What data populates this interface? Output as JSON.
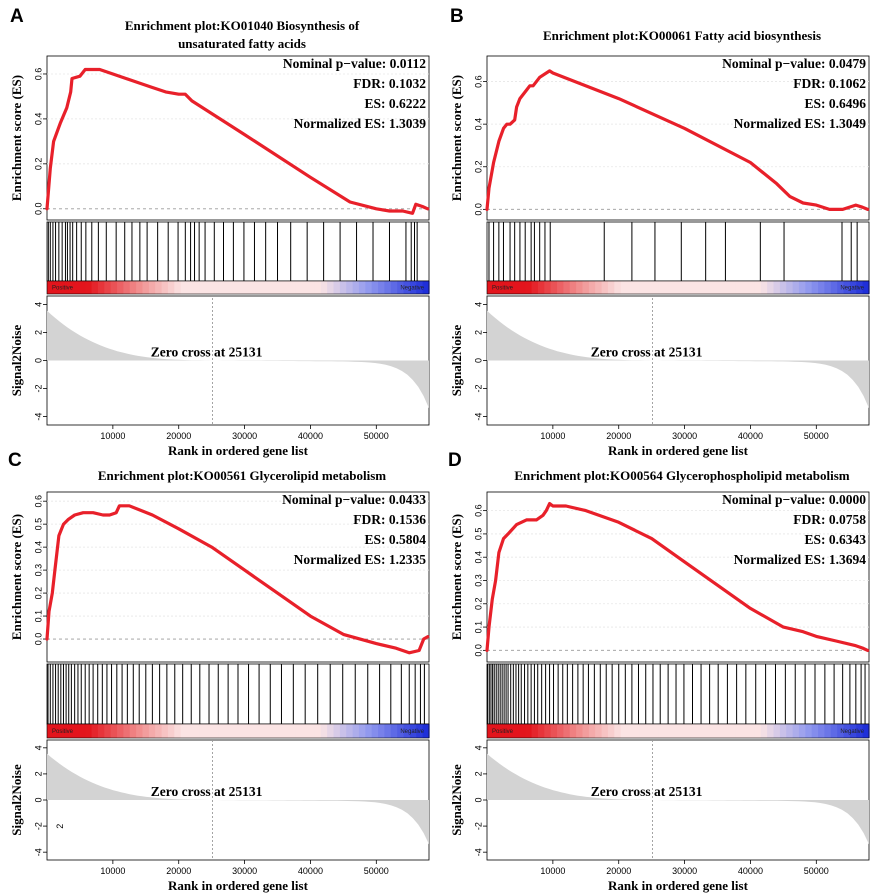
{
  "chart_data": [
    {
      "type": "line",
      "panel_letter": "A",
      "title": [
        "Enrichment plot:KO01040 Biosynthesis of",
        "unsaturated fatty acids"
      ],
      "stats": [
        "Nominal p−value: 0.0112",
        "FDR: 0.1032",
        "ES: 0.6222",
        "Normalized ES: 1.3039"
      ],
      "ylabel": "Enrichment score (ES)",
      "ylim": [
        -0.05,
        0.68
      ],
      "yticks": [
        "0.0",
        "0.2",
        "0.4",
        "0.6"
      ],
      "es_x": [
        0,
        500,
        1000,
        2000,
        3000,
        3600,
        3800,
        5000,
        5800,
        7000,
        8000,
        10000,
        12000,
        14000,
        16000,
        18000,
        20000,
        21000,
        22000,
        30000,
        40000,
        46000,
        50000,
        52000,
        54000,
        55500,
        56000,
        57000,
        57800
      ],
      "es_y": [
        0.0,
        0.18,
        0.3,
        0.38,
        0.45,
        0.52,
        0.58,
        0.59,
        0.62,
        0.62,
        0.62,
        0.6,
        0.58,
        0.56,
        0.54,
        0.52,
        0.51,
        0.51,
        0.48,
        0.33,
        0.14,
        0.03,
        0.0,
        -0.01,
        -0.01,
        -0.02,
        0.02,
        0.01,
        0.0
      ],
      "hits": [
        200,
        500,
        900,
        1300,
        1800,
        2300,
        2800,
        3100,
        3500,
        3900,
        4500,
        5200,
        5900,
        6800,
        7800,
        9000,
        10500,
        11800,
        12900,
        14100,
        15200,
        16800,
        18400,
        19900,
        21000,
        21800,
        22400,
        23100,
        24000,
        25400,
        26800,
        28300,
        29900,
        31500,
        33200,
        35000,
        37000,
        39500,
        42000,
        44500,
        47000,
        49500,
        52000,
        54500,
        55300,
        55800,
        56200
      ],
      "s2n_label": "Signal2Noise",
      "s2n_yticks": [
        "4",
        "2",
        "0",
        "-2",
        "-4"
      ],
      "zero_cross_label": "Zero cross at 25131",
      "zero_cross": 25131,
      "heatmap_pos_label": "Positive",
      "heatmap_neg_label": "Negative",
      "xlabel": "Rank in ordered gene list",
      "xticks": [
        10000,
        20000,
        30000,
        40000,
        50000
      ],
      "xlim": [
        0,
        58000
      ]
    },
    {
      "type": "line",
      "panel_letter": "B",
      "title": [
        "Enrichment plot:KO00061 Fatty acid biosynthesis"
      ],
      "stats": [
        "Nominal p−value: 0.0479",
        "FDR: 0.1062",
        "ES: 0.6496",
        "Normalized ES: 1.3049"
      ],
      "ylabel": "Enrichment score (ES)",
      "ylim": [
        -0.05,
        0.72
      ],
      "yticks": [
        "0.0",
        "0.2",
        "0.4",
        "0.6"
      ],
      "es_x": [
        0,
        300,
        1000,
        1800,
        2500,
        3000,
        3500,
        4200,
        4500,
        5000,
        6000,
        6500,
        7000,
        8000,
        9500,
        10000,
        20000,
        30000,
        40000,
        44000,
        46000,
        48000,
        50000,
        52000,
        54000,
        56000,
        57000,
        57800
      ],
      "es_y": [
        0.0,
        0.1,
        0.22,
        0.32,
        0.38,
        0.4,
        0.4,
        0.42,
        0.48,
        0.52,
        0.56,
        0.58,
        0.58,
        0.62,
        0.65,
        0.64,
        0.52,
        0.38,
        0.22,
        0.12,
        0.06,
        0.03,
        0.02,
        0.0,
        0.0,
        0.02,
        0.01,
        0.0
      ],
      "hits": [
        300,
        1000,
        1800,
        2500,
        3500,
        4200,
        5000,
        5800,
        6700,
        7200,
        8000,
        8800,
        9600,
        17800,
        22000,
        25500,
        29500,
        33200,
        36200,
        41500,
        45100,
        53900,
        55300,
        56200
      ],
      "s2n_label": "Signal2Noise",
      "s2n_yticks": [
        "4",
        "2",
        "0",
        "-2",
        "-4"
      ],
      "zero_cross_label": "Zero cross at 25131",
      "zero_cross": 25131,
      "heatmap_pos_label": "Positive",
      "heatmap_neg_label": "Negative",
      "xlabel": "Rank in ordered gene list",
      "xticks": [
        10000,
        20000,
        30000,
        40000,
        50000
      ],
      "xlim": [
        0,
        58000
      ]
    },
    {
      "type": "line",
      "panel_letter": "C",
      "title": [
        "Enrichment plot:KO00561 Glycerolipid metabolism"
      ],
      "stats": [
        "Nominal p−value: 0.0433",
        "FDR: 0.1536",
        "ES: 0.5804",
        "Normalized ES: 1.2335"
      ],
      "ylabel": "Enrichment score (ES)",
      "ylim": [
        -0.1,
        0.64
      ],
      "yticks": [
        "0.0",
        "0.1",
        "0.2",
        "0.3",
        "0.4",
        "0.5",
        "0.6"
      ],
      "es_x": [
        0,
        300,
        800,
        1200,
        1800,
        2500,
        3200,
        4200,
        5500,
        7000,
        8500,
        9500,
        10500,
        11000,
        12500,
        16000,
        20000,
        25000,
        30000,
        35000,
        40000,
        45000,
        50000,
        53000,
        55000,
        56500,
        57200,
        57800
      ],
      "es_y": [
        0.0,
        0.12,
        0.2,
        0.3,
        0.45,
        0.5,
        0.52,
        0.54,
        0.55,
        0.55,
        0.54,
        0.54,
        0.55,
        0.58,
        0.58,
        0.54,
        0.48,
        0.4,
        0.3,
        0.2,
        0.1,
        0.02,
        -0.02,
        -0.04,
        -0.06,
        -0.05,
        0.0,
        0.01
      ],
      "hits": [
        150,
        500,
        900,
        1300,
        1700,
        2100,
        2500,
        2900,
        3300,
        3700,
        4200,
        4700,
        5200,
        5800,
        6400,
        7000,
        7700,
        8400,
        9100,
        9800,
        10600,
        11400,
        12200,
        13100,
        14000,
        15000,
        16000,
        17100,
        18200,
        19400,
        20600,
        21900,
        23200,
        24600,
        26000,
        27500,
        29000,
        30600,
        32200,
        33900,
        35600,
        37400,
        39200,
        41100,
        43000,
        44900,
        46800,
        48700,
        50500,
        52200,
        53800,
        55000,
        55900,
        56700,
        57300
      ],
      "s2n_label": "Signal2Noise",
      "s2n_yticks": [
        "4",
        "2",
        "0",
        "-2",
        "-4"
      ],
      "zero_cross_label": "Zero cross at 25131",
      "zero_cross": 25131,
      "stray_label": "2",
      "heatmap_pos_label": "Positive",
      "heatmap_neg_label": "Negative",
      "xlabel": "Rank in ordered gene list",
      "xticks": [
        10000,
        20000,
        30000,
        40000,
        50000
      ],
      "xlim": [
        0,
        58000
      ]
    },
    {
      "type": "line",
      "panel_letter": "D",
      "title": [
        "Enrichment plot:KO00564 Glycerophospholipid metabolism"
      ],
      "stats": [
        "Nominal p−value: 0.0000",
        "FDR: 0.0758",
        "ES: 0.6343",
        "Normalized ES: 1.3694"
      ],
      "ylabel": "Enrichment score (ES)",
      "ylim": [
        -0.05,
        0.68
      ],
      "yticks": [
        "0.0",
        "0.1",
        "0.2",
        "0.3",
        "0.4",
        "0.5",
        "0.6"
      ],
      "es_x": [
        0,
        300,
        800,
        1300,
        1800,
        2500,
        3200,
        4500,
        6000,
        7500,
        8500,
        9000,
        9500,
        10000,
        12000,
        15000,
        20000,
        25000,
        30000,
        35000,
        40000,
        45000,
        48000,
        50000,
        53000,
        56000,
        57000,
        57800
      ],
      "es_y": [
        0.0,
        0.1,
        0.22,
        0.3,
        0.42,
        0.48,
        0.5,
        0.54,
        0.56,
        0.56,
        0.58,
        0.6,
        0.63,
        0.62,
        0.62,
        0.6,
        0.55,
        0.48,
        0.38,
        0.28,
        0.18,
        0.1,
        0.08,
        0.06,
        0.04,
        0.02,
        0.01,
        0.0
      ],
      "hits": [
        100,
        350,
        600,
        850,
        1100,
        1400,
        1700,
        2000,
        2300,
        2600,
        2900,
        3200,
        3600,
        4000,
        4400,
        4800,
        5200,
        5700,
        6200,
        6700,
        7200,
        7700,
        8300,
        8900,
        9500,
        10100,
        10800,
        11500,
        12200,
        13000,
        13800,
        14600,
        15400,
        16300,
        17200,
        18100,
        19000,
        20000,
        21000,
        22000,
        23000,
        24100,
        25200,
        26300,
        27500,
        28700,
        29900,
        31200,
        32500,
        33800,
        35100,
        36500,
        37900,
        39300,
        40800,
        42300,
        43800,
        45300,
        46800,
        48300,
        49800,
        51300,
        52700,
        54000,
        55100,
        56000,
        56800,
        57400
      ],
      "s2n_label": "Signal2Noise",
      "s2n_yticks": [
        "4",
        "2",
        "0",
        "-2",
        "-4"
      ],
      "zero_cross_label": "Zero cross at 25131",
      "zero_cross": 25131,
      "heatmap_pos_label": "Positive",
      "heatmap_neg_label": "Negative",
      "xlabel": "Rank in ordered gene list",
      "xticks": [
        10000,
        20000,
        30000,
        40000,
        50000
      ],
      "xlim": [
        0,
        58000
      ]
    }
  ],
  "colors": {
    "es_line": "#e8202a",
    "hit_line": "#000000",
    "s2n_fill": "#d3d3d3",
    "heat_pos": "#e3141c",
    "heat_neg": "#1f2fd9",
    "heat_mid": "#fbe4e4",
    "zero_line": "#9a9a9a"
  }
}
